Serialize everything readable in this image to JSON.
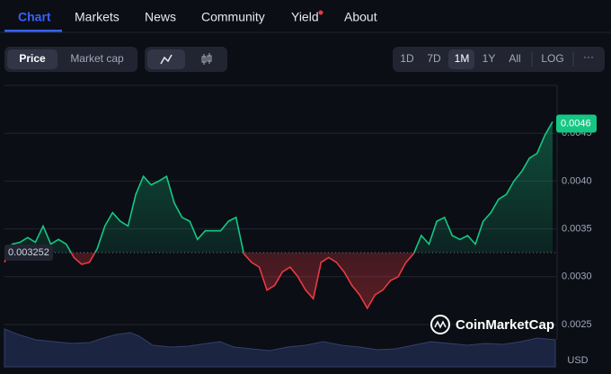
{
  "nav": {
    "tabs": [
      "Chart",
      "Markets",
      "News",
      "Community",
      "Yield",
      "About"
    ]
  },
  "controls": {
    "view": [
      "Price",
      "Market cap"
    ],
    "ranges": [
      "1D",
      "7D",
      "1M",
      "1Y",
      "All"
    ],
    "scale": "LOG",
    "more": "···"
  },
  "watermark": "CoinMarketCap",
  "chart_data": {
    "type": "line",
    "values": [
      0.00315,
      0.00334,
      0.00336,
      0.00341,
      0.00336,
      0.00353,
      0.00334,
      0.00339,
      0.00334,
      0.0032,
      0.00313,
      0.00315,
      0.00329,
      0.00353,
      0.00367,
      0.00358,
      0.00353,
      0.00386,
      0.00405,
      0.00396,
      0.004,
      0.00405,
      0.00377,
      0.00362,
      0.00358,
      0.00339,
      0.00348,
      0.00348,
      0.00348,
      0.00358,
      0.00362,
      0.00324,
      0.00315,
      0.0031,
      0.00286,
      0.00291,
      0.00305,
      0.0031,
      0.003,
      0.00286,
      0.00277,
      0.00315,
      0.0032,
      0.00315,
      0.00305,
      0.00291,
      0.00281,
      0.00267,
      0.00281,
      0.00286,
      0.00296,
      0.003,
      0.00315,
      0.00324,
      0.00343,
      0.00334,
      0.00358,
      0.00362,
      0.00343,
      0.00339,
      0.00343,
      0.00334,
      0.00358,
      0.00367,
      0.00381,
      0.00386,
      0.004,
      0.0041,
      0.00424,
      0.00429,
      0.00448,
      0.00462
    ],
    "baseline": 0.003252,
    "current_price": 0.0046,
    "up_color": "#16c784",
    "down_color": "#ea3943",
    "ylim": [
      0.00234,
      0.005
    ],
    "yticks": [
      0.0045,
      {
        "value": 0.004,
        "label": "0.0040"
      },
      0.0035,
      {
        "value": 0.003,
        "label": "0.0030"
      },
      0.0025
    ],
    "grid": true,
    "currency": "USD"
  }
}
